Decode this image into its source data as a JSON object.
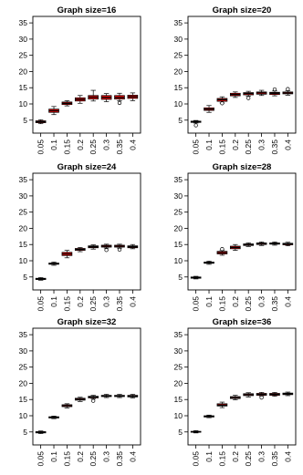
{
  "chart_data": [
    {
      "type": "box",
      "title": "Graph size=16",
      "categories": [
        "0.05",
        "0.1",
        "0.15",
        "0.2",
        "0.25",
        "0.3",
        "0.35",
        "0.4"
      ],
      "ylim": [
        1,
        37
      ],
      "yticks": [
        5,
        10,
        15,
        20,
        25,
        30,
        35
      ],
      "boxes": [
        {
          "min": 3.9,
          "q1": 4.2,
          "median": 4.5,
          "q3": 4.8,
          "max": 5.1,
          "outliers": []
        },
        {
          "min": 6.7,
          "q1": 7.4,
          "median": 7.9,
          "q3": 8.4,
          "max": 9.2,
          "outliers": []
        },
        {
          "min": 9.4,
          "q1": 9.8,
          "median": 10.2,
          "q3": 10.6,
          "max": 11.0,
          "outliers": []
        },
        {
          "min": 10.2,
          "q1": 10.9,
          "median": 11.4,
          "q3": 11.9,
          "max": 12.6,
          "outliers": []
        },
        {
          "min": 10.9,
          "q1": 11.5,
          "median": 12.1,
          "q3": 12.6,
          "max": 14.2,
          "outliers": []
        },
        {
          "min": 10.7,
          "q1": 11.4,
          "median": 12.0,
          "q3": 12.6,
          "max": 13.2,
          "outliers": []
        },
        {
          "min": 11.0,
          "q1": 11.5,
          "median": 12.0,
          "q3": 12.6,
          "max": 13.3,
          "outliers": [
            10.3
          ]
        },
        {
          "min": 11.0,
          "q1": 11.7,
          "median": 12.2,
          "q3": 12.7,
          "max": 13.4,
          "outliers": []
        }
      ]
    },
    {
      "type": "box",
      "title": "Graph size=20",
      "categories": [
        "0.05",
        "0.1",
        "0.15",
        "0.2",
        "0.25",
        "0.3",
        "0.35",
        "0.4"
      ],
      "ylim": [
        1,
        37
      ],
      "yticks": [
        5,
        10,
        15,
        20,
        25,
        30,
        35
      ],
      "boxes": [
        {
          "min": 4.1,
          "q1": 4.3,
          "median": 4.5,
          "q3": 4.7,
          "max": 4.9,
          "outliers": [
            3.4
          ]
        },
        {
          "min": 7.4,
          "q1": 8.0,
          "median": 8.4,
          "q3": 8.8,
          "max": 9.5,
          "outliers": []
        },
        {
          "min": 10.3,
          "q1": 10.8,
          "median": 11.3,
          "q3": 11.7,
          "max": 12.2,
          "outliers": [
            10.2
          ]
        },
        {
          "min": 12.0,
          "q1": 12.5,
          "median": 12.9,
          "q3": 13.3,
          "max": 13.7,
          "outliers": []
        },
        {
          "min": 12.4,
          "q1": 12.8,
          "median": 13.2,
          "q3": 13.5,
          "max": 13.9,
          "outliers": [
            11.8
          ]
        },
        {
          "min": 12.6,
          "q1": 13.0,
          "median": 13.4,
          "q3": 13.7,
          "max": 14.2,
          "outliers": []
        },
        {
          "min": 12.5,
          "q1": 12.9,
          "median": 13.3,
          "q3": 13.6,
          "max": 14.0,
          "outliers": [
            14.5
          ]
        },
        {
          "min": 12.7,
          "q1": 13.1,
          "median": 13.4,
          "q3": 13.7,
          "max": 14.1,
          "outliers": [
            14.6
          ]
        }
      ]
    },
    {
      "type": "box",
      "title": "Graph size=24",
      "categories": [
        "0.05",
        "0.1",
        "0.15",
        "0.2",
        "0.25",
        "0.3",
        "0.35",
        "0.4"
      ],
      "ylim": [
        1,
        37
      ],
      "yticks": [
        5,
        10,
        15,
        20,
        25,
        30,
        35
      ],
      "boxes": [
        {
          "min": 4.0,
          "q1": 4.2,
          "median": 4.4,
          "q3": 4.6,
          "max": 4.8,
          "outliers": []
        },
        {
          "min": 8.6,
          "q1": 8.9,
          "median": 9.1,
          "q3": 9.3,
          "max": 9.6,
          "outliers": []
        },
        {
          "min": 10.9,
          "q1": 11.6,
          "median": 12.1,
          "q3": 12.6,
          "max": 13.2,
          "outliers": []
        },
        {
          "min": 12.8,
          "q1": 13.2,
          "median": 13.5,
          "q3": 13.8,
          "max": 14.1,
          "outliers": []
        },
        {
          "min": 13.6,
          "q1": 14.0,
          "median": 14.3,
          "q3": 14.6,
          "max": 14.9,
          "outliers": []
        },
        {
          "min": 13.9,
          "q1": 14.2,
          "median": 14.5,
          "q3": 14.8,
          "max": 15.1,
          "outliers": [
            13.3
          ]
        },
        {
          "min": 13.9,
          "q1": 14.2,
          "median": 14.5,
          "q3": 14.8,
          "max": 15.1,
          "outliers": [
            13.4
          ]
        },
        {
          "min": 13.7,
          "q1": 14.0,
          "median": 14.3,
          "q3": 14.6,
          "max": 15.0,
          "outliers": []
        }
      ]
    },
    {
      "type": "box",
      "title": "Graph size=28",
      "categories": [
        "0.05",
        "0.1",
        "0.15",
        "0.2",
        "0.25",
        "0.3",
        "0.35",
        "0.4"
      ],
      "ylim": [
        1,
        37
      ],
      "yticks": [
        5,
        10,
        15,
        20,
        25,
        30,
        35
      ],
      "boxes": [
        {
          "min": 4.4,
          "q1": 4.6,
          "median": 4.8,
          "q3": 5.0,
          "max": 5.2,
          "outliers": []
        },
        {
          "min": 8.9,
          "q1": 9.2,
          "median": 9.4,
          "q3": 9.6,
          "max": 9.9,
          "outliers": []
        },
        {
          "min": 11.7,
          "q1": 12.1,
          "median": 12.5,
          "q3": 12.9,
          "max": 13.3,
          "outliers": [
            13.6
          ]
        },
        {
          "min": 13.2,
          "q1": 13.7,
          "median": 14.1,
          "q3": 14.5,
          "max": 15.0,
          "outliers": []
        },
        {
          "min": 14.4,
          "q1": 14.7,
          "median": 15.0,
          "q3": 15.2,
          "max": 15.5,
          "outliers": []
        },
        {
          "min": 14.7,
          "q1": 15.0,
          "median": 15.3,
          "q3": 15.5,
          "max": 15.8,
          "outliers": []
        },
        {
          "min": 14.8,
          "q1": 15.1,
          "median": 15.3,
          "q3": 15.5,
          "max": 15.8,
          "outliers": []
        },
        {
          "min": 14.6,
          "q1": 14.9,
          "median": 15.2,
          "q3": 15.4,
          "max": 15.7,
          "outliers": []
        }
      ]
    },
    {
      "type": "box",
      "title": "Graph size=32",
      "categories": [
        "0.05",
        "0.1",
        "0.15",
        "0.2",
        "0.25",
        "0.3",
        "0.35",
        "0.4"
      ],
      "ylim": [
        1,
        37
      ],
      "yticks": [
        5,
        10,
        15,
        20,
        25,
        30,
        35
      ],
      "boxes": [
        {
          "min": 4.5,
          "q1": 4.7,
          "median": 4.9,
          "q3": 5.1,
          "max": 5.3,
          "outliers": []
        },
        {
          "min": 9.1,
          "q1": 9.3,
          "median": 9.5,
          "q3": 9.7,
          "max": 9.9,
          "outliers": []
        },
        {
          "min": 12.4,
          "q1": 12.8,
          "median": 13.1,
          "q3": 13.4,
          "max": 13.7,
          "outliers": []
        },
        {
          "min": 14.4,
          "q1": 14.8,
          "median": 15.1,
          "q3": 15.4,
          "max": 15.7,
          "outliers": []
        },
        {
          "min": 15.2,
          "q1": 15.5,
          "median": 15.8,
          "q3": 16.0,
          "max": 16.3,
          "outliers": [
            14.6
          ]
        },
        {
          "min": 15.6,
          "q1": 15.9,
          "median": 16.1,
          "q3": 16.3,
          "max": 16.6,
          "outliers": []
        },
        {
          "min": 15.6,
          "q1": 15.9,
          "median": 16.1,
          "q3": 16.3,
          "max": 16.6,
          "outliers": []
        },
        {
          "min": 15.5,
          "q1": 15.8,
          "median": 16.0,
          "q3": 16.3,
          "max": 16.6,
          "outliers": []
        }
      ]
    },
    {
      "type": "box",
      "title": "Graph size=36",
      "categories": [
        "0.05",
        "0.1",
        "0.15",
        "0.2",
        "0.25",
        "0.3",
        "0.35",
        "0.4"
      ],
      "ylim": [
        1,
        37
      ],
      "yticks": [
        5,
        10,
        15,
        20,
        25,
        30,
        35
      ],
      "boxes": [
        {
          "min": 4.7,
          "q1": 4.9,
          "median": 5.0,
          "q3": 5.2,
          "max": 5.4,
          "outliers": []
        },
        {
          "min": 9.4,
          "q1": 9.6,
          "median": 9.8,
          "q3": 10.0,
          "max": 10.2,
          "outliers": []
        },
        {
          "min": 12.5,
          "q1": 13.0,
          "median": 13.3,
          "q3": 13.7,
          "max": 14.2,
          "outliers": []
        },
        {
          "min": 14.9,
          "q1": 15.3,
          "median": 15.6,
          "q3": 15.9,
          "max": 16.3,
          "outliers": []
        },
        {
          "min": 15.8,
          "q1": 16.2,
          "median": 16.5,
          "q3": 16.8,
          "max": 17.1,
          "outliers": []
        },
        {
          "min": 16.0,
          "q1": 16.3,
          "median": 16.6,
          "q3": 16.9,
          "max": 17.2,
          "outliers": [
            15.6
          ]
        },
        {
          "min": 16.0,
          "q1": 16.3,
          "median": 16.6,
          "q3": 16.9,
          "max": 17.2,
          "outliers": []
        },
        {
          "min": 16.2,
          "q1": 16.5,
          "median": 16.8,
          "q3": 17.0,
          "max": 17.3,
          "outliers": []
        }
      ]
    }
  ],
  "colors": {
    "box_fill": "#ff0000",
    "stroke": "#000000",
    "background": "#ffffff"
  }
}
